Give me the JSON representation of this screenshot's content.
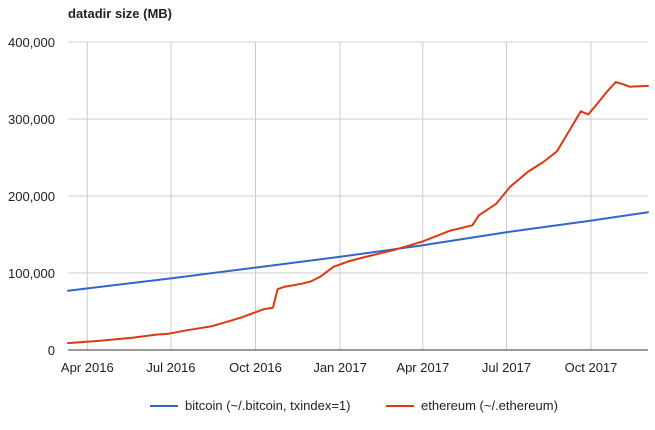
{
  "chart_data": {
    "type": "line",
    "title": "datadir size (MB)",
    "xlabel": "",
    "ylabel": "",
    "x_ticks": [
      "Apr 2016",
      "Jul 2016",
      "Oct 2016",
      "Jan 2017",
      "Apr 2017",
      "Jul 2017",
      "Oct 2017"
    ],
    "y_ticks": [
      0,
      100000,
      200000,
      300000,
      400000
    ],
    "y_tick_labels": [
      "0",
      "100,000",
      "200,000",
      "300,000",
      "400,000"
    ],
    "xlim": [
      "2016-03-11",
      "2017-12-02"
    ],
    "ylim": [
      0,
      400000
    ],
    "grid": true,
    "legend_position": "bottom",
    "series": [
      {
        "name": "bitcoin (~/.bitcoin, txindex=1)",
        "color": "#3366cc",
        "points": [
          [
            "2016-03-11",
            77000
          ],
          [
            "2016-07-01",
            93000
          ],
          [
            "2016-10-01",
            107000
          ],
          [
            "2017-01-01",
            121000
          ],
          [
            "2017-04-01",
            136000
          ],
          [
            "2017-07-01",
            153000
          ],
          [
            "2017-10-01",
            168000
          ],
          [
            "2017-12-02",
            179000
          ]
        ]
      },
      {
        "name": "ethereum (~/.ethereum)",
        "color": "#dc3912",
        "points": [
          [
            "2016-03-11",
            9000
          ],
          [
            "2016-04-15",
            12000
          ],
          [
            "2016-05-20",
            16000
          ],
          [
            "2016-06-15",
            20000
          ],
          [
            "2016-06-28",
            21000
          ],
          [
            "2016-07-15",
            25000
          ],
          [
            "2016-08-15",
            31000
          ],
          [
            "2016-09-15",
            42000
          ],
          [
            "2016-10-10",
            53000
          ],
          [
            "2016-10-20",
            55000
          ],
          [
            "2016-10-25",
            79000
          ],
          [
            "2016-11-01",
            82000
          ],
          [
            "2016-11-20",
            86000
          ],
          [
            "2016-11-30",
            89000
          ],
          [
            "2016-12-10",
            95000
          ],
          [
            "2016-12-25",
            108000
          ],
          [
            "2017-01-10",
            115000
          ],
          [
            "2017-02-01",
            122000
          ],
          [
            "2017-03-01",
            130000
          ],
          [
            "2017-04-01",
            141000
          ],
          [
            "2017-05-01",
            155000
          ],
          [
            "2017-05-25",
            162000
          ],
          [
            "2017-06-01",
            175000
          ],
          [
            "2017-06-20",
            190000
          ],
          [
            "2017-07-05",
            212000
          ],
          [
            "2017-07-25",
            232000
          ],
          [
            "2017-08-10",
            244000
          ],
          [
            "2017-08-25",
            258000
          ],
          [
            "2017-09-05",
            280000
          ],
          [
            "2017-09-20",
            310000
          ],
          [
            "2017-09-28",
            306000
          ],
          [
            "2017-10-08",
            320000
          ],
          [
            "2017-10-18",
            335000
          ],
          [
            "2017-10-28",
            348000
          ],
          [
            "2017-11-05",
            345000
          ],
          [
            "2017-11-12",
            342000
          ],
          [
            "2017-12-02",
            343000
          ]
        ]
      }
    ]
  }
}
